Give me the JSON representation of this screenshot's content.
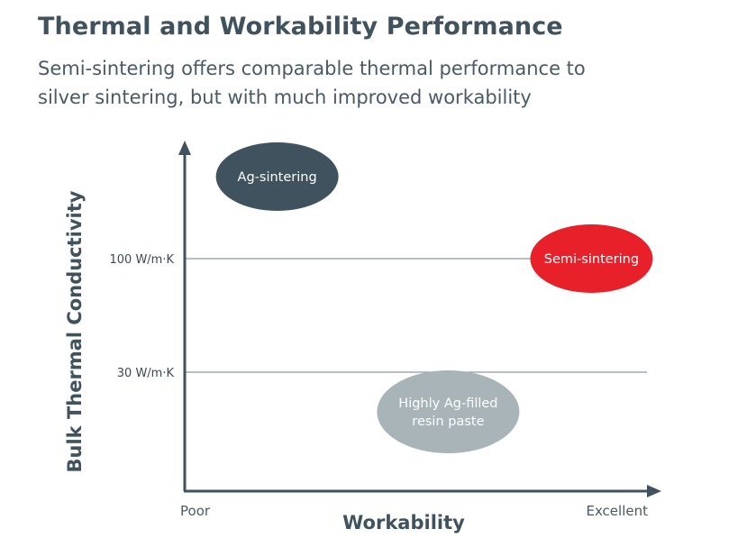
{
  "header": {
    "title": "Thermal and Workability Performance",
    "subtitle_lines": [
      "Semi-sintering offers comparable thermal performance to",
      "silver sintering, but with much improved workability"
    ]
  },
  "chart_data": {
    "type": "scatter",
    "xlabel": "Workability",
    "ylabel": "Bulk Thermal Conductivity",
    "x_ticks": [
      {
        "label": "Poor",
        "pos": 0
      },
      {
        "label": "Excellent",
        "pos": 1
      }
    ],
    "reference_lines": [
      {
        "label": "100 W/m·K",
        "value": 100
      },
      {
        "label": "30 W/m·K",
        "value": 30
      }
    ],
    "points": [
      {
        "label": [
          "Ag-sintering"
        ],
        "workability": 0.2,
        "conductivity": 165,
        "color": "#3f525e"
      },
      {
        "label": [
          "Semi-sintering"
        ],
        "workability": 0.88,
        "conductivity": 100,
        "color": "#e8202a"
      },
      {
        "label": [
          "Highly Ag-filled",
          "resin paste"
        ],
        "workability": 0.57,
        "conductivity": 20,
        "color": "#a9b4b9"
      }
    ],
    "y_scale": "piecewise-linear",
    "legend": "none",
    "grid": false,
    "colors": {
      "axis": "#3f525e",
      "gridline": "#8a9aa3"
    }
  }
}
